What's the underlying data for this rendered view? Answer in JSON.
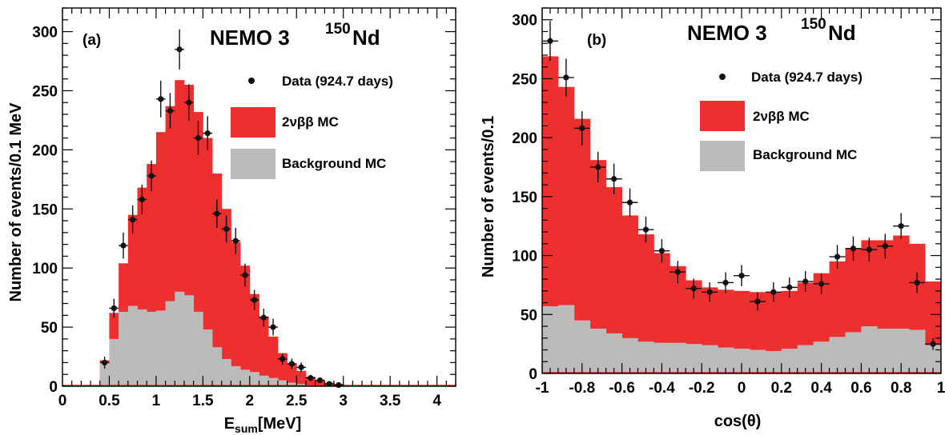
{
  "colors": {
    "signal": "#ee2f2f",
    "background": "#bdbaba",
    "data": "#111111",
    "axis": "#000000"
  },
  "legend": {
    "data": "Data (924.7 days)",
    "signal": "2νββ MC",
    "background": "Background MC"
  },
  "chart_data": [
    {
      "type": "bar",
      "panel_label": "(a)",
      "experiment": "NEMO 3",
      "isotope_mass": "150",
      "isotope_symbol": "Nd",
      "xlabel_main": "E",
      "xlabel_sub": "sum",
      "xlabel_unit": "[MeV]",
      "ylabel": "Number of events/0.1 MeV",
      "xlim": [
        0,
        4.2
      ],
      "ylim": [
        0,
        320
      ],
      "xticks": [
        0,
        0.5,
        1,
        1.5,
        2,
        2.5,
        3,
        3.5,
        4
      ],
      "xtick_labels": [
        "0",
        "0.5",
        "1",
        "1.5",
        "2",
        "2.5",
        "3",
        "3.5",
        "4"
      ],
      "yticks": [
        0,
        50,
        100,
        150,
        200,
        250,
        300
      ],
      "ytick_labels": [
        "0",
        "50",
        "100",
        "150",
        "200",
        "250",
        "300"
      ],
      "bin_edges": [
        0.4,
        0.5,
        0.6,
        0.7,
        0.8,
        0.9,
        1.0,
        1.1,
        1.2,
        1.3,
        1.4,
        1.5,
        1.6,
        1.7,
        1.8,
        1.9,
        2.0,
        2.1,
        2.2,
        2.3,
        2.4,
        2.5,
        2.6,
        2.7,
        2.8,
        2.9,
        3.0,
        3.1,
        3.2,
        3.3
      ],
      "total_mc": [
        22,
        62,
        104,
        145,
        168,
        188,
        215,
        237,
        259,
        255,
        232,
        210,
        180,
        150,
        122,
        102,
        78,
        59,
        42,
        28,
        19,
        13,
        8,
        5,
        3,
        2,
        1,
        1,
        0.5
      ],
      "background_mc": [
        20,
        40,
        63,
        68,
        65,
        63,
        64,
        72,
        80,
        77,
        63,
        48,
        33,
        23,
        17,
        14,
        12,
        9,
        7,
        5,
        3,
        2,
        1,
        1,
        0.5,
        0.3,
        0.2,
        0.1,
        0
      ],
      "data_points": [
        {
          "x": 0.45,
          "y": 20,
          "err": 5
        },
        {
          "x": 0.55,
          "y": 66,
          "err": 8
        },
        {
          "x": 0.65,
          "y": 119,
          "err": 11
        },
        {
          "x": 0.75,
          "y": 141,
          "err": 12
        },
        {
          "x": 0.85,
          "y": 158,
          "err": 12.5
        },
        {
          "x": 0.95,
          "y": 178,
          "err": 13
        },
        {
          "x": 1.05,
          "y": 243,
          "err": 15.5
        },
        {
          "x": 1.15,
          "y": 233,
          "err": 15
        },
        {
          "x": 1.25,
          "y": 285,
          "err": 17
        },
        {
          "x": 1.35,
          "y": 240,
          "err": 15.5
        },
        {
          "x": 1.45,
          "y": 210,
          "err": 14.5
        },
        {
          "x": 1.55,
          "y": 214,
          "err": 14.5
        },
        {
          "x": 1.65,
          "y": 146,
          "err": 12
        },
        {
          "x": 1.75,
          "y": 133,
          "err": 11.5
        },
        {
          "x": 1.85,
          "y": 123,
          "err": 11
        },
        {
          "x": 1.95,
          "y": 94,
          "err": 9.7
        },
        {
          "x": 2.05,
          "y": 73,
          "err": 8.5
        },
        {
          "x": 2.15,
          "y": 58,
          "err": 7.6
        },
        {
          "x": 2.25,
          "y": 50,
          "err": 7.1
        },
        {
          "x": 2.35,
          "y": 23,
          "err": 4.8
        },
        {
          "x": 2.45,
          "y": 19,
          "err": 4.4
        },
        {
          "x": 2.55,
          "y": 16,
          "err": 4
        },
        {
          "x": 2.65,
          "y": 7,
          "err": 2.6
        },
        {
          "x": 2.75,
          "y": 5,
          "err": 2.2
        },
        {
          "x": 2.85,
          "y": 2,
          "err": 1.4
        },
        {
          "x": 2.95,
          "y": 1,
          "err": 1
        }
      ]
    },
    {
      "type": "bar",
      "panel_label": "(b)",
      "experiment": "NEMO 3",
      "isotope_mass": "150",
      "isotope_symbol": "Nd",
      "xlabel": "cos(θ)",
      "ylabel": "Number of events/0.1",
      "xlim": [
        -1,
        1
      ],
      "ylim": [
        0,
        310
      ],
      "xticks": [
        -1,
        -0.8,
        -0.6,
        -0.4,
        -0.2,
        0,
        0.2,
        0.4,
        0.6,
        0.8,
        1
      ],
      "xtick_labels": [
        "-1",
        "-0.8",
        "-0.6",
        "-0.4",
        "-0.2",
        "0",
        "0.2",
        "0.4",
        "0.6",
        "0.8",
        "1"
      ],
      "yticks": [
        0,
        50,
        100,
        150,
        200,
        250,
        300
      ],
      "ytick_labels": [
        "0",
        "50",
        "100",
        "150",
        "200",
        "250",
        "300"
      ],
      "bin_edges": [
        -1.0,
        -0.92,
        -0.84,
        -0.76,
        -0.68,
        -0.6,
        -0.52,
        -0.44,
        -0.36,
        -0.28,
        -0.2,
        -0.12,
        -0.04,
        0.04,
        0.12,
        0.2,
        0.28,
        0.36,
        0.44,
        0.52,
        0.6,
        0.68,
        0.76,
        0.84,
        0.92,
        1.0
      ],
      "total_mc": [
        269,
        243,
        216,
        181,
        158,
        134,
        118,
        102,
        91,
        79,
        73,
        71,
        70,
        69,
        69,
        70,
        77,
        85,
        95,
        106,
        113,
        113,
        117,
        110,
        78
      ],
      "background_mc": [
        57,
        58,
        45,
        38,
        34,
        30,
        27,
        26,
        26,
        25,
        24,
        22,
        21,
        20,
        19,
        21,
        24,
        27,
        31,
        35,
        40,
        38,
        38,
        37,
        24
      ],
      "data_points": [
        {
          "x": -0.96,
          "y": 282,
          "err": 17
        },
        {
          "x": -0.88,
          "y": 251,
          "err": 16
        },
        {
          "x": -0.8,
          "y": 208,
          "err": 14.5
        },
        {
          "x": -0.72,
          "y": 175,
          "err": 13
        },
        {
          "x": -0.64,
          "y": 165,
          "err": 13
        },
        {
          "x": -0.56,
          "y": 145,
          "err": 12
        },
        {
          "x": -0.48,
          "y": 122,
          "err": 11
        },
        {
          "x": -0.4,
          "y": 104,
          "err": 10
        },
        {
          "x": -0.32,
          "y": 86,
          "err": 9.5
        },
        {
          "x": -0.24,
          "y": 72,
          "err": 8.5
        },
        {
          "x": -0.16,
          "y": 69,
          "err": 8.3
        },
        {
          "x": -0.08,
          "y": 77,
          "err": 8.8
        },
        {
          "x": 0.0,
          "y": 83,
          "err": 9
        },
        {
          "x": 0.08,
          "y": 61,
          "err": 7.8
        },
        {
          "x": 0.16,
          "y": 69,
          "err": 8.3
        },
        {
          "x": 0.24,
          "y": 73,
          "err": 8.5
        },
        {
          "x": 0.32,
          "y": 78,
          "err": 8.8
        },
        {
          "x": 0.4,
          "y": 76,
          "err": 8.7
        },
        {
          "x": 0.48,
          "y": 99,
          "err": 10
        },
        {
          "x": 0.56,
          "y": 106,
          "err": 10.3
        },
        {
          "x": 0.64,
          "y": 105,
          "err": 10.2
        },
        {
          "x": 0.72,
          "y": 108,
          "err": 10.4
        },
        {
          "x": 0.8,
          "y": 125,
          "err": 11
        },
        {
          "x": 0.88,
          "y": 77,
          "err": 8.8
        },
        {
          "x": 0.96,
          "y": 25,
          "err": 5
        }
      ]
    }
  ]
}
